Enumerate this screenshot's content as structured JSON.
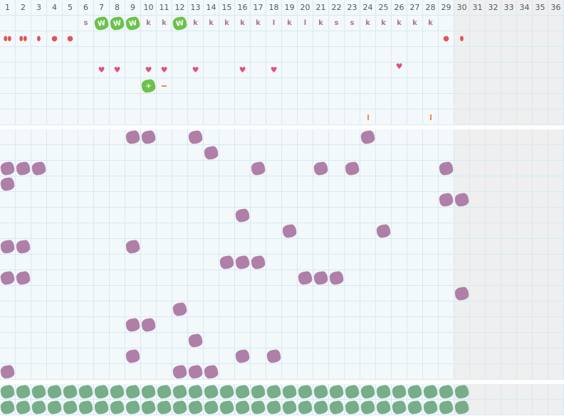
{
  "days": [
    "1",
    "2",
    "3",
    "4",
    "5",
    "6",
    "7",
    "8",
    "9",
    "10",
    "11",
    "12",
    "13",
    "14",
    "15",
    "16",
    "17",
    "18",
    "19",
    "20",
    "21",
    "22",
    "23",
    "24",
    "25",
    "26",
    "27",
    "28",
    "29",
    "30",
    "31",
    "32",
    "33",
    "34",
    "35",
    "36"
  ],
  "active_days": 30,
  "colors": {
    "grid": "#d6e9f3",
    "cell": "#f3f8fa",
    "inactive": "#efefef",
    "purple": "#b07fa8",
    "green": "#6bc24a",
    "sage": "#78ad8a",
    "red": "#e05555",
    "heart": "#e0507a",
    "orange": "#f08a50"
  },
  "letters": {
    "6": "s",
    "7": "W",
    "8": "W",
    "9": "W",
    "10": "k",
    "11": "k",
    "12": "W",
    "13": "k",
    "14": "k",
    "15": "k",
    "16": "k",
    "17": "k",
    "18": "l",
    "19": "k",
    "20": "l",
    "21": "k",
    "22": "s",
    "23": "s",
    "24": "k",
    "25": "k",
    "26": "k",
    "27": "k",
    "28": "k"
  },
  "green_letter_days": [
    7,
    8,
    9,
    12
  ],
  "flow": {
    "1": "drop-double",
    "2": "drop-double",
    "3": "drop",
    "4": "dot",
    "5": "dot",
    "29": "dot",
    "30": "drop"
  },
  "hearts": [
    7,
    8,
    10,
    11,
    13,
    16,
    18,
    26
  ],
  "plus_minus": {
    "10": "+",
    "11": "-"
  },
  "marks_row7": [
    24,
    28
  ],
  "purple_grid": [
    [
      9,
      10,
      13,
      24
    ],
    [
      14
    ],
    [
      1,
      2,
      3,
      17,
      21,
      23,
      29
    ],
    [
      1
    ],
    [
      29,
      30
    ],
    [
      16
    ],
    [
      19,
      25
    ],
    [
      1,
      2,
      9
    ],
    [
      15,
      16,
      17
    ],
    [
      1,
      2,
      20,
      21,
      22
    ],
    [
      30
    ],
    [
      12
    ],
    [
      9,
      10
    ],
    [
      13
    ],
    [
      9,
      16,
      18
    ],
    [
      1,
      12,
      13,
      14
    ]
  ],
  "sage_rows": 2
}
